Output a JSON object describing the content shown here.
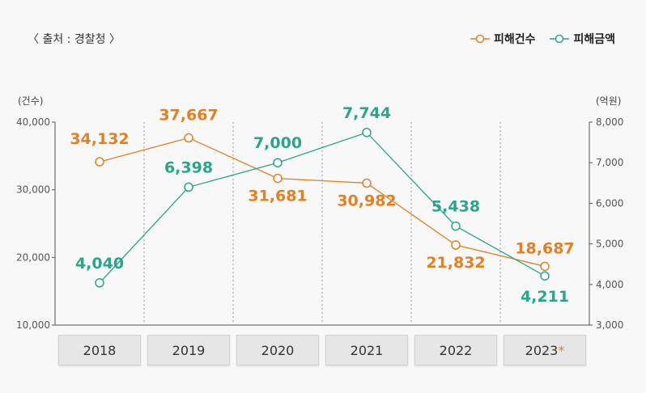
{
  "source": "〈 출처 : 경찰청 〉",
  "legend": [
    {
      "label": "피해건수",
      "color": "#e67e22"
    },
    {
      "label": "피해금액",
      "color": "#2aa58a"
    }
  ],
  "units": {
    "left": "(건수)",
    "right": "(억원)"
  },
  "chart_data": {
    "type": "line",
    "categories": [
      "2018",
      "2019",
      "2020",
      "2021",
      "2022",
      "2023"
    ],
    "category_marks": [
      "",
      "",
      "",
      "",
      "",
      "*"
    ],
    "series": [
      {
        "name": "피해건수",
        "axis": "left",
        "color": "#e67e22",
        "values": [
          34132,
          37667,
          31681,
          30982,
          21832,
          18687
        ],
        "labels": [
          "34,132",
          "37,667",
          "31,681",
          "30,982",
          "21,832",
          "18,687"
        ]
      },
      {
        "name": "피해금액",
        "axis": "right",
        "color": "#2aa58a",
        "values": [
          4040,
          6398,
          7000,
          7744,
          5438,
          4211
        ],
        "labels": [
          "4,040",
          "6,398",
          "7,000",
          "7,744",
          "5,438",
          "4,211"
        ]
      }
    ],
    "y_left": {
      "min": 10000,
      "max": 40000,
      "ticks": [
        "10,000",
        "20,000",
        "30,000",
        "40,000"
      ]
    },
    "y_right": {
      "min": 3000,
      "max": 8000,
      "ticks": [
        "3,000",
        "4,000",
        "5,000",
        "6,000",
        "7,000",
        "8,000"
      ]
    },
    "grid": "vertical dotted separators"
  }
}
